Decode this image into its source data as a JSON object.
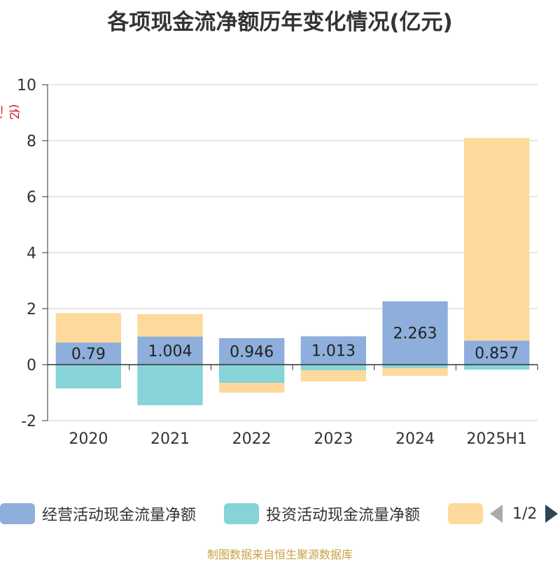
{
  "title": "各项现金流净额历年变化情况(亿元)",
  "unit_label": "(亿元)",
  "legend": {
    "items": [
      {
        "label": "经营活动现金流量净额",
        "color": "#8eaedb"
      },
      {
        "label": "投资活动现金流量净额",
        "color": "#86d4d8"
      },
      {
        "label": "",
        "color": "#fdd99b"
      }
    ],
    "page": "1/2"
  },
  "source": "制图数据来自恒生聚源数据库",
  "chart_data": {
    "type": "bar",
    "stacked": true,
    "categories": [
      "2020",
      "2021",
      "2022",
      "2023",
      "2024",
      "2025H1"
    ],
    "series": [
      {
        "name": "经营活动现金流量净额",
        "color": "#8eaedb",
        "values": [
          0.79,
          1.004,
          0.946,
          1.013,
          2.263,
          0.857
        ],
        "labels_shown": true
      },
      {
        "name": "投资活动现金流量净额",
        "color": "#86d4d8",
        "values": [
          -0.85,
          -1.45,
          -0.65,
          -0.2,
          -0.12,
          -0.18
        ]
      },
      {
        "color": "#fdd99b",
        "values": [
          1.05,
          0.8,
          -0.35,
          -0.4,
          -0.28,
          7.24
        ]
      }
    ],
    "ylim": [
      -2,
      10
    ],
    "yticks": [
      -2,
      0,
      2,
      4,
      6,
      8,
      10
    ],
    "grid": true,
    "legend_position": "bottom"
  }
}
